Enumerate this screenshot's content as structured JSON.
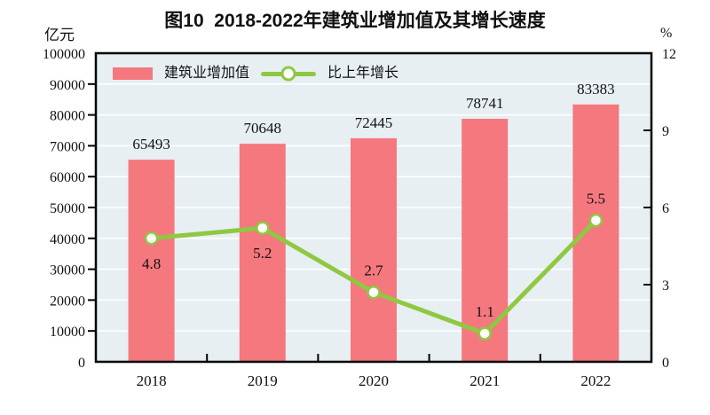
{
  "header": {
    "title": "图10  2018-2022年建筑业增加值及其增长速度"
  },
  "legend": {
    "items": [
      {
        "label": "建筑业增加值",
        "swatch": "bar"
      },
      {
        "label": "比上年增长",
        "swatch": "line"
      }
    ]
  },
  "chart_data": {
    "type": "bar",
    "subtype": "bar-line-combo",
    "title": "图10  2018-2022年建筑业增加值及其增长速度",
    "categories": [
      "2018",
      "2019",
      "2020",
      "2021",
      "2022"
    ],
    "series": [
      {
        "name": "建筑业增加值",
        "type": "bar",
        "axis": "left",
        "color": "#F4787E",
        "values": [
          65493,
          70648,
          72445,
          78741,
          83383
        ]
      },
      {
        "name": "比上年增长",
        "type": "line",
        "axis": "right",
        "color": "#8FC841",
        "marker_fill": "#FFFFFF",
        "values": [
          4.8,
          5.2,
          2.7,
          1.1,
          5.5
        ],
        "value_label_positions": [
          "below",
          "below",
          "above",
          "above",
          "above"
        ]
      }
    ],
    "left_axis": {
      "unit": "亿元",
      "min": 0,
      "max": 100000,
      "step": 10000,
      "tick_labels": [
        "0",
        "10000",
        "20000",
        "30000",
        "40000",
        "50000",
        "60000",
        "70000",
        "80000",
        "90000",
        "100000"
      ]
    },
    "right_axis": {
      "unit": "%",
      "min": 0,
      "max": 12,
      "step": 3,
      "tick_labels": [
        "0",
        "3",
        "6",
        "9",
        "12"
      ]
    },
    "grid": "on",
    "legend_position": "top-left-inside",
    "colors": {
      "plot_background": "#E7EFF3",
      "gridline": "#FFFFFF",
      "axis_border": "#000000",
      "text": "#111111"
    }
  }
}
